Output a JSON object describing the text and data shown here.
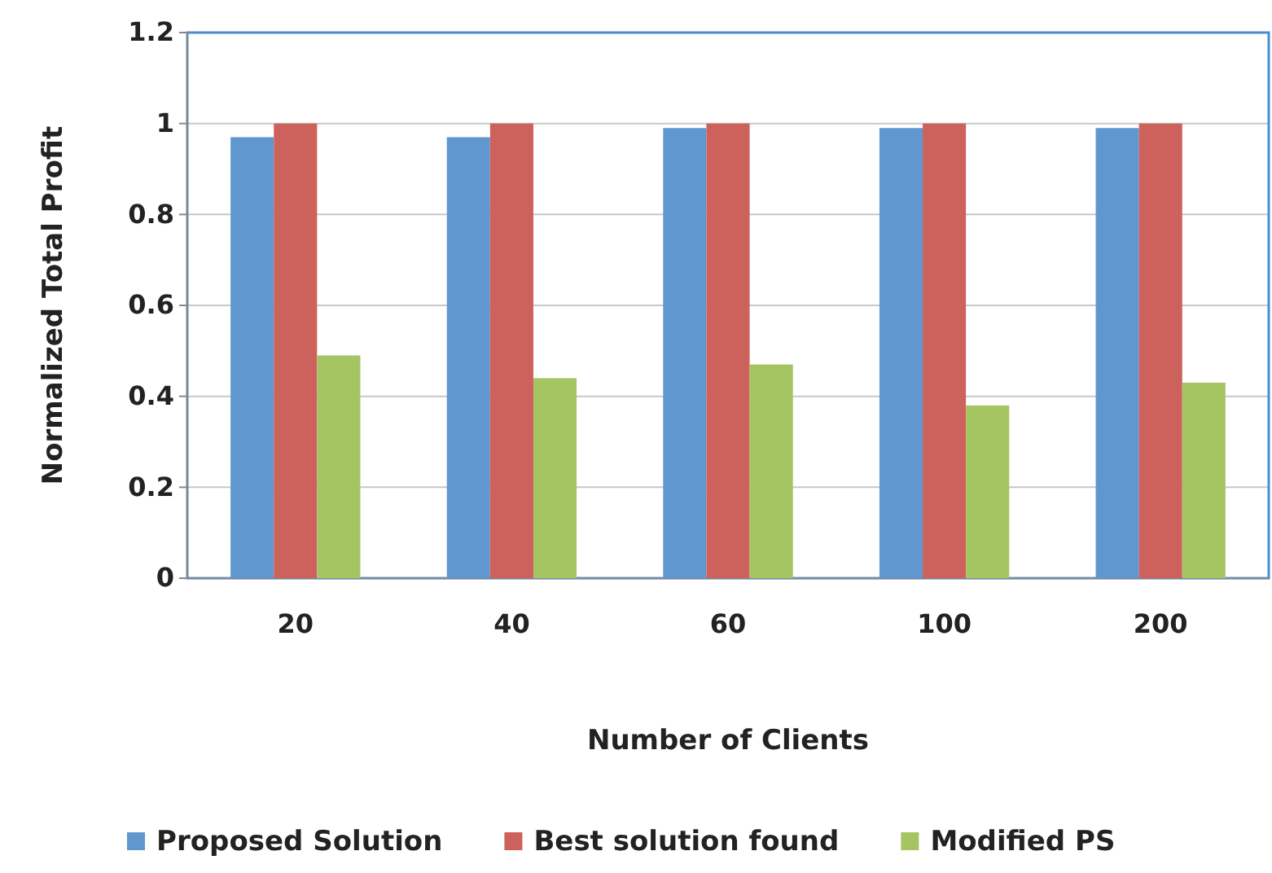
{
  "chart_data": {
    "type": "bar",
    "xlabel": "Number of Clients",
    "ylabel": "Normalized Total Profit",
    "categories": [
      "20",
      "40",
      "60",
      "100",
      "200"
    ],
    "series": [
      {
        "name": "Proposed Solution",
        "color": "#6097cf",
        "values": [
          0.97,
          0.97,
          0.99,
          0.99,
          0.99
        ]
      },
      {
        "name": "Best solution found",
        "color": "#cd625c",
        "values": [
          1,
          1,
          1,
          1,
          1
        ]
      },
      {
        "name": "Modified PS",
        "color": "#a5c563",
        "values": [
          0.49,
          0.44,
          0.47,
          0.38,
          0.43
        ]
      }
    ],
    "ylim": [
      0,
      1.2
    ],
    "yticks": [
      0,
      0.2,
      0.4,
      0.6,
      0.8,
      1,
      1.2
    ],
    "grid": "y",
    "legend": "bottom"
  }
}
